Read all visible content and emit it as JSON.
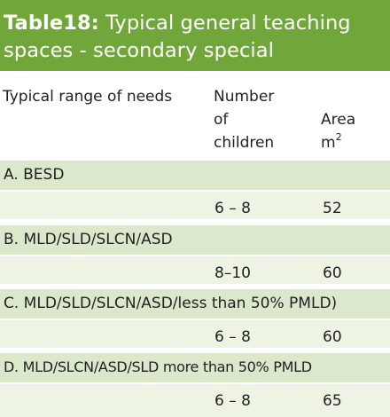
{
  "table": {
    "number": "Table18:",
    "title_line1": "Typical general teaching",
    "title_line2": "spaces - secondary special",
    "headers": {
      "range": "Typical range of needs",
      "children_l1": "Number",
      "children_l2": "of",
      "children_l3": "children",
      "area_l1": "Area",
      "area_l2": "m",
      "area_sup": "2"
    },
    "rows": [
      {
        "category": "A. BESD",
        "children": "6 – 8",
        "area": "52"
      },
      {
        "category": "B. MLD/SLD/SLCN/ASD",
        "children": "8–10",
        "area": "60"
      },
      {
        "category": "C. MLD/SLD/SLCN/ASD/less than 50% PMLD)",
        "children": "6 – 8",
        "area": "60"
      },
      {
        "category": "D. MLD/SLCN/ASD/SLD more than 50% PMLD",
        "children": "6 – 8",
        "area": "65"
      }
    ]
  }
}
